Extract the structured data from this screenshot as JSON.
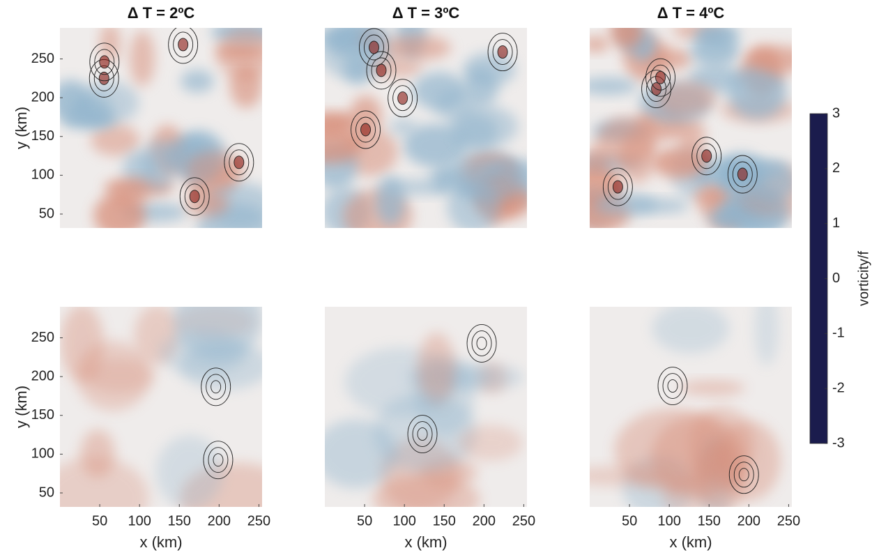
{
  "chart_data": [
    {
      "type": "heatmap",
      "title": "Δ T = 2ºC",
      "ylabel": "y (km)",
      "xlim": [
        0,
        254
      ],
      "ylim": [
        32,
        290
      ],
      "yticks": [
        50,
        100,
        150,
        200,
        250
      ]
    },
    {
      "type": "heatmap",
      "title": "Δ T = 3ºC",
      "xlim": [
        0,
        254
      ],
      "ylim": [
        32,
        290
      ]
    },
    {
      "type": "heatmap",
      "title": "Δ T = 4ºC",
      "xlim": [
        0,
        254
      ],
      "ylim": [
        32,
        290
      ]
    },
    {
      "type": "heatmap",
      "xlabel": "x (km)",
      "ylabel": "y (km)",
      "xlim": [
        0,
        254
      ],
      "ylim": [
        32,
        290
      ],
      "xticks": [
        50,
        100,
        150,
        200,
        250
      ],
      "yticks": [
        50,
        100,
        150,
        200,
        250
      ]
    },
    {
      "type": "heatmap",
      "xlabel": "x (km)",
      "xlim": [
        0,
        254
      ],
      "ylim": [
        32,
        290
      ],
      "xticks": [
        50,
        100,
        150,
        200,
        250
      ]
    },
    {
      "type": "heatmap",
      "xlabel": "x (km)",
      "xlim": [
        0,
        254
      ],
      "ylim": [
        32,
        290
      ],
      "xticks": [
        50,
        100,
        150,
        200,
        250
      ]
    },
    {
      "type": "colorbar",
      "label": "vorticity/f",
      "clim": [
        -3,
        3
      ],
      "ticks": [
        -3,
        -2,
        -1,
        0,
        1,
        2,
        3
      ],
      "colors": [
        "#1b1c4d",
        "#2a3fc2",
        "#3e8fc4",
        "#ebe9e8",
        "#d98370",
        "#b52a20",
        "#3a0a10"
      ]
    }
  ]
}
